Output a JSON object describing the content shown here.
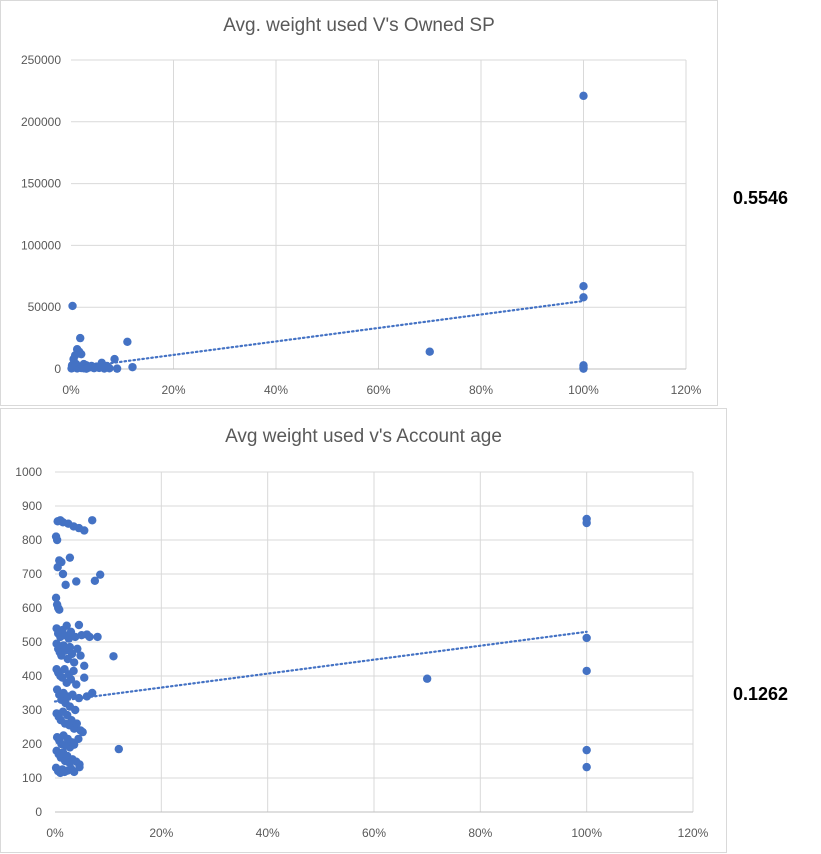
{
  "chart_data": [
    {
      "type": "scatter",
      "title": "Avg. weight used V's Owned SP",
      "xlabel": "",
      "ylabel": "",
      "xlim": [
        0,
        1.2
      ],
      "ylim": [
        0,
        250000
      ],
      "x_ticks": [
        "0%",
        "20%",
        "40%",
        "60%",
        "80%",
        "100%",
        "120%"
      ],
      "y_ticks": [
        "0",
        "50000",
        "100000",
        "150000",
        "200000",
        "250000"
      ],
      "grid": true,
      "legend": "none",
      "trendline": {
        "style": "dotted",
        "x": [
          0,
          1.0
        ],
        "y": [
          500,
          55000
        ]
      },
      "annotation_r2": "0.5546",
      "color": "#4472C4",
      "points": [
        [
          0.003,
          51000
        ],
        [
          0.012,
          16000
        ],
        [
          0.016,
          14000
        ],
        [
          0.02,
          12000
        ],
        [
          0.008,
          11000
        ],
        [
          0.005,
          8000
        ],
        [
          0.018,
          25000
        ],
        [
          0.11,
          22000
        ],
        [
          0.085,
          8000
        ],
        [
          0.06,
          5000
        ],
        [
          0.025,
          4000
        ],
        [
          0.03,
          3000
        ],
        [
          0.04,
          2500
        ],
        [
          0.05,
          2000
        ],
        [
          0.07,
          2500
        ],
        [
          0.12,
          1500
        ],
        [
          0.001,
          500
        ],
        [
          0.004,
          1000
        ],
        [
          0.008,
          2000
        ],
        [
          0.012,
          500
        ],
        [
          0.015,
          1500
        ],
        [
          0.02,
          800
        ],
        [
          0.025,
          600
        ],
        [
          0.03,
          300
        ],
        [
          0.035,
          1200
        ],
        [
          0.045,
          700
        ],
        [
          0.055,
          900
        ],
        [
          0.065,
          400
        ],
        [
          0.075,
          600
        ],
        [
          0.09,
          300
        ],
        [
          0.01,
          4000
        ],
        [
          0.006,
          5000
        ],
        [
          0.002,
          3000
        ],
        [
          0.7,
          14000
        ],
        [
          1.0,
          221000
        ],
        [
          1.0,
          67000
        ],
        [
          1.0,
          58000
        ],
        [
          1.0,
          3000
        ],
        [
          1.0,
          1500
        ],
        [
          1.0,
          300
        ]
      ]
    },
    {
      "type": "scatter",
      "title": "Avg weight used v's Account age",
      "xlabel": "",
      "ylabel": "",
      "xlim": [
        0,
        1.2
      ],
      "ylim": [
        0,
        1000
      ],
      "x_ticks": [
        "0%",
        "20%",
        "40%",
        "60%",
        "80%",
        "100%",
        "120%"
      ],
      "y_ticks": [
        "0",
        "100",
        "200",
        "300",
        "400",
        "500",
        "600",
        "700",
        "800",
        "900",
        "1000"
      ],
      "grid": true,
      "legend": "none",
      "trendline": {
        "style": "dotted",
        "x": [
          0,
          1.0
        ],
        "y": [
          325,
          530
        ]
      },
      "annotation_r2": "0.1262",
      "color": "#4472C4",
      "points": [
        [
          0.005,
          855
        ],
        [
          0.01,
          858
        ],
        [
          0.015,
          852
        ],
        [
          0.025,
          848
        ],
        [
          0.035,
          840
        ],
        [
          0.045,
          835
        ],
        [
          0.055,
          828
        ],
        [
          0.07,
          858
        ],
        [
          0.002,
          810
        ],
        [
          0.004,
          800
        ],
        [
          0.008,
          740
        ],
        [
          0.012,
          735
        ],
        [
          0.028,
          748
        ],
        [
          0.005,
          720
        ],
        [
          0.015,
          700
        ],
        [
          0.02,
          668
        ],
        [
          0.04,
          678
        ],
        [
          0.075,
          680
        ],
        [
          0.085,
          698
        ],
        [
          0.002,
          630
        ],
        [
          0.004,
          610
        ],
        [
          0.006,
          600
        ],
        [
          0.008,
          595
        ],
        [
          0.003,
          540
        ],
        [
          0.006,
          525
        ],
        [
          0.01,
          515
        ],
        [
          0.014,
          535
        ],
        [
          0.018,
          520
        ],
        [
          0.022,
          548
        ],
        [
          0.026,
          510
        ],
        [
          0.03,
          530
        ],
        [
          0.038,
          515
        ],
        [
          0.045,
          550
        ],
        [
          0.05,
          520
        ],
        [
          0.06,
          522
        ],
        [
          0.065,
          515
        ],
        [
          0.08,
          515
        ],
        [
          0.003,
          495
        ],
        [
          0.006,
          480
        ],
        [
          0.009,
          470
        ],
        [
          0.012,
          460
        ],
        [
          0.016,
          490
        ],
        [
          0.02,
          475
        ],
        [
          0.024,
          450
        ],
        [
          0.028,
          485
        ],
        [
          0.032,
          465
        ],
        [
          0.036,
          440
        ],
        [
          0.042,
          480
        ],
        [
          0.048,
          460
        ],
        [
          0.055,
          430
        ],
        [
          0.003,
          420
        ],
        [
          0.006,
          410
        ],
        [
          0.01,
          400
        ],
        [
          0.014,
          395
        ],
        [
          0.018,
          420
        ],
        [
          0.022,
          380
        ],
        [
          0.026,
          405
        ],
        [
          0.03,
          390
        ],
        [
          0.035,
          415
        ],
        [
          0.04,
          375
        ],
        [
          0.055,
          395
        ],
        [
          0.06,
          340
        ],
        [
          0.07,
          350
        ],
        [
          0.11,
          458
        ],
        [
          0.004,
          360
        ],
        [
          0.008,
          345
        ],
        [
          0.012,
          330
        ],
        [
          0.016,
          350
        ],
        [
          0.02,
          320
        ],
        [
          0.024,
          340
        ],
        [
          0.028,
          310
        ],
        [
          0.033,
          345
        ],
        [
          0.038,
          300
        ],
        [
          0.045,
          335
        ],
        [
          0.003,
          290
        ],
        [
          0.007,
          280
        ],
        [
          0.011,
          270
        ],
        [
          0.015,
          295
        ],
        [
          0.019,
          260
        ],
        [
          0.023,
          285
        ],
        [
          0.027,
          255
        ],
        [
          0.031,
          270
        ],
        [
          0.036,
          245
        ],
        [
          0.041,
          260
        ],
        [
          0.048,
          240
        ],
        [
          0.052,
          235
        ],
        [
          0.004,
          220
        ],
        [
          0.008,
          210
        ],
        [
          0.012,
          200
        ],
        [
          0.016,
          225
        ],
        [
          0.02,
          195
        ],
        [
          0.024,
          215
        ],
        [
          0.028,
          190
        ],
        [
          0.032,
          205
        ],
        [
          0.036,
          198
        ],
        [
          0.044,
          215
        ],
        [
          0.003,
          180
        ],
        [
          0.007,
          170
        ],
        [
          0.011,
          160
        ],
        [
          0.015,
          175
        ],
        [
          0.019,
          150
        ],
        [
          0.023,
          165
        ],
        [
          0.027,
          145
        ],
        [
          0.033,
          155
        ],
        [
          0.04,
          148
        ],
        [
          0.046,
          140
        ],
        [
          0.12,
          185
        ],
        [
          0.002,
          130
        ],
        [
          0.006,
          120
        ],
        [
          0.01,
          115
        ],
        [
          0.014,
          125
        ],
        [
          0.018,
          118
        ],
        [
          0.024,
          122
        ],
        [
          0.03,
          128
        ],
        [
          0.036,
          118
        ],
        [
          0.046,
          132
        ],
        [
          0.7,
          392
        ],
        [
          1.0,
          862
        ],
        [
          1.0,
          850
        ],
        [
          1.0,
          512
        ],
        [
          1.0,
          415
        ],
        [
          1.0,
          182
        ],
        [
          1.0,
          132
        ]
      ]
    }
  ]
}
